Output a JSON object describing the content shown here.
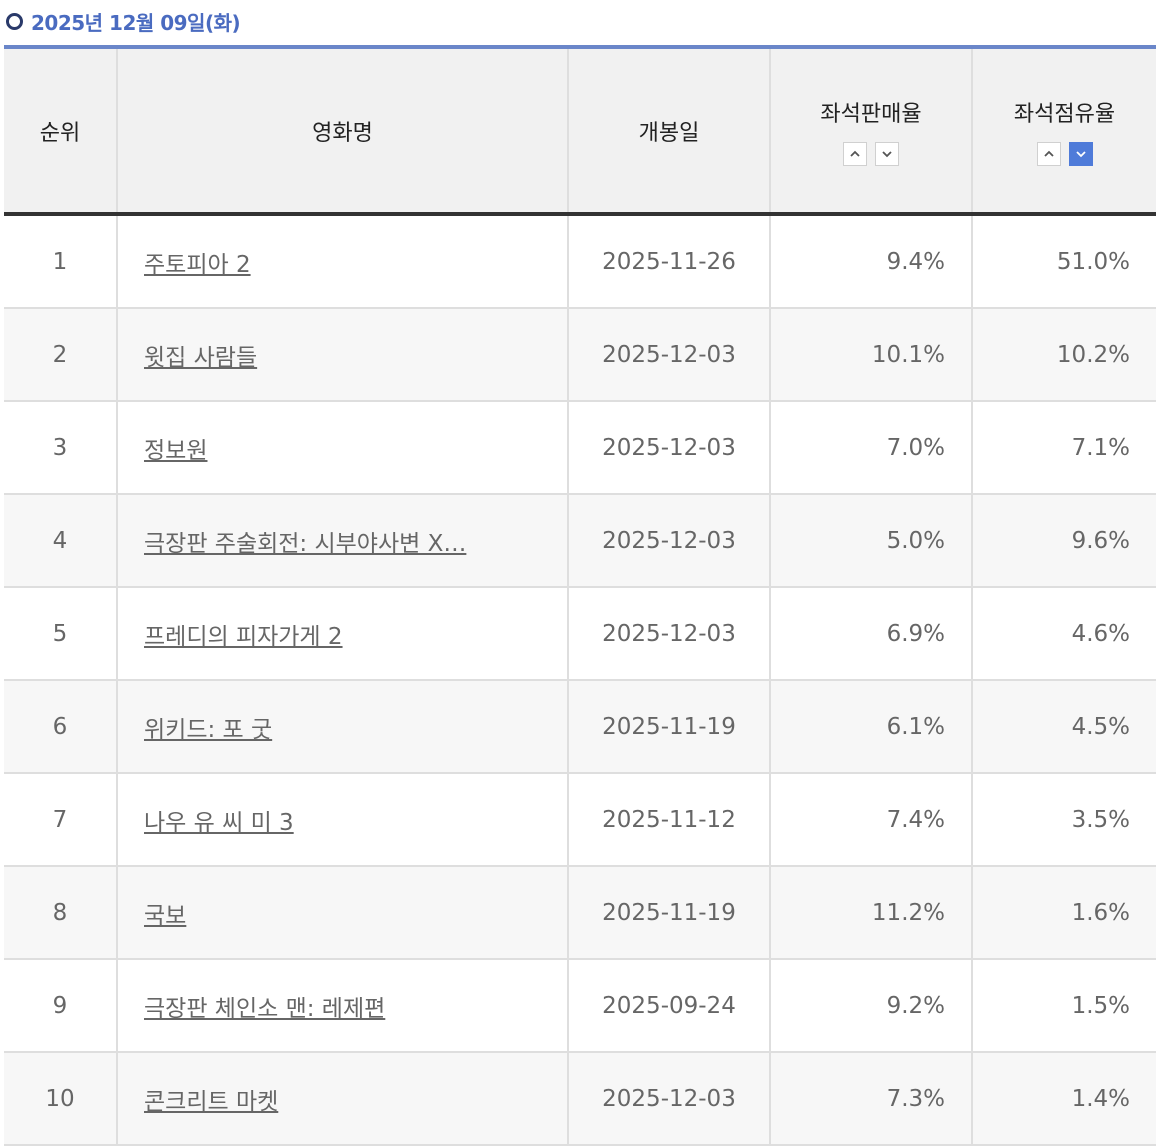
{
  "date_heading": "2025년 12월 09일(화)",
  "table": {
    "headers": {
      "rank": "순위",
      "title": "영화명",
      "release": "개봉일",
      "sales_rate": "좌석판매율",
      "share_rate": "좌석점유율"
    },
    "sort": {
      "sales_rate": {
        "asc": "caret-up-icon",
        "desc": "caret-down-icon",
        "active": "none"
      },
      "share_rate": {
        "asc": "caret-up-icon",
        "desc": "caret-down-icon",
        "active": "desc"
      }
    },
    "rows": [
      {
        "rank": "1",
        "title": "주토피아 2",
        "release": "2025-11-26",
        "sales_rate": "9.4%",
        "share_rate": "51.0%"
      },
      {
        "rank": "2",
        "title": "윗집 사람들",
        "release": "2025-12-03",
        "sales_rate": "10.1%",
        "share_rate": "10.2%"
      },
      {
        "rank": "3",
        "title": "정보원",
        "release": "2025-12-03",
        "sales_rate": "7.0%",
        "share_rate": "7.1%"
      },
      {
        "rank": "4",
        "title": "극장판 주술회전: 시부야사변 X…",
        "release": "2025-12-03",
        "sales_rate": "5.0%",
        "share_rate": "9.6%"
      },
      {
        "rank": "5",
        "title": "프레디의 피자가게 2",
        "release": "2025-12-03",
        "sales_rate": "6.9%",
        "share_rate": "4.6%"
      },
      {
        "rank": "6",
        "title": "위키드: 포 굿",
        "release": "2025-11-19",
        "sales_rate": "6.1%",
        "share_rate": "4.5%"
      },
      {
        "rank": "7",
        "title": "나우 유 씨 미 3",
        "release": "2025-11-12",
        "sales_rate": "7.4%",
        "share_rate": "3.5%"
      },
      {
        "rank": "8",
        "title": "국보",
        "release": "2025-11-19",
        "sales_rate": "11.2%",
        "share_rate": "1.6%"
      },
      {
        "rank": "9",
        "title": "극장판 체인소 맨: 레제편",
        "release": "2025-09-24",
        "sales_rate": "9.2%",
        "share_rate": "1.5%"
      },
      {
        "rank": "10",
        "title": "콘크리트 마켓",
        "release": "2025-12-03",
        "sales_rate": "7.3%",
        "share_rate": "1.4%"
      }
    ]
  },
  "colors": {
    "heading": "#4a6bc0",
    "accent": "#4f7bd9",
    "header_bg": "#f1f1f1",
    "stripe_bg": "#f7f7f7"
  }
}
